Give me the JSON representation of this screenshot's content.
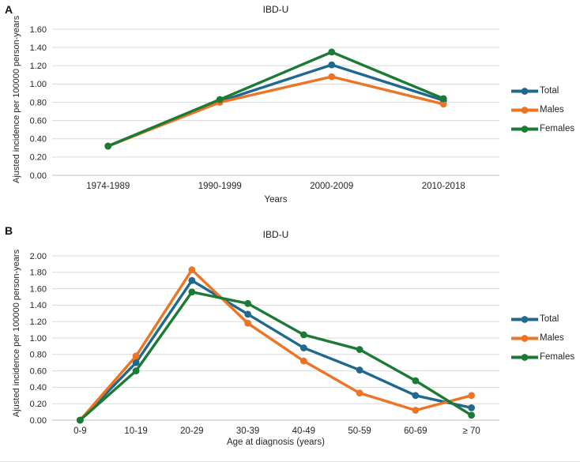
{
  "panels": [
    {
      "letter": "A"
    },
    {
      "letter": "B"
    }
  ],
  "chart_data": [
    {
      "type": "line",
      "title": "IBD-U",
      "xlabel": "Years",
      "ylabel": "Ajusted incidence per 100000 person-years",
      "categories": [
        "1974-1989",
        "1990-1999",
        "2000-2009",
        "2010-2018"
      ],
      "series": [
        {
          "name": "Total",
          "color": "#20698E",
          "values": [
            0.32,
            0.81,
            1.21,
            0.82
          ]
        },
        {
          "name": "Males",
          "color": "#EC7424",
          "values": [
            0.32,
            0.8,
            1.08,
            0.78
          ]
        },
        {
          "name": "Females",
          "color": "#1B7A34",
          "values": [
            0.32,
            0.83,
            1.35,
            0.84
          ]
        }
      ],
      "ylim": [
        0,
        1.6
      ],
      "ytick_step": 0.2,
      "grid": true,
      "legend_position": "right",
      "gridline_color": "#D9D9D9",
      "axis_color": "#BFBFBF"
    },
    {
      "type": "line",
      "title": "IBD-U",
      "xlabel": "Age at diagnosis (years)",
      "ylabel": "Ajusted incidence per 100000 person-years",
      "categories": [
        "0-9",
        "10-19",
        "20-29",
        "30-39",
        "40-49",
        "50-59",
        "60-69",
        "≥ 70"
      ],
      "series": [
        {
          "name": "Total",
          "color": "#20698E",
          "values": [
            0.0,
            0.7,
            1.7,
            1.29,
            0.88,
            0.61,
            0.3,
            0.15
          ]
        },
        {
          "name": "Males",
          "color": "#EC7424",
          "values": [
            0.0,
            0.78,
            1.83,
            1.18,
            0.72,
            0.33,
            0.12,
            0.3
          ]
        },
        {
          "name": "Females",
          "color": "#1B7A34",
          "values": [
            0.0,
            0.6,
            1.56,
            1.42,
            1.04,
            0.86,
            0.48,
            0.06
          ]
        }
      ],
      "ylim": [
        0,
        2.0
      ],
      "ytick_step": 0.2,
      "grid": true,
      "legend_position": "right",
      "gridline_color": "#D9D9D9",
      "axis_color": "#BFBFBF"
    }
  ]
}
